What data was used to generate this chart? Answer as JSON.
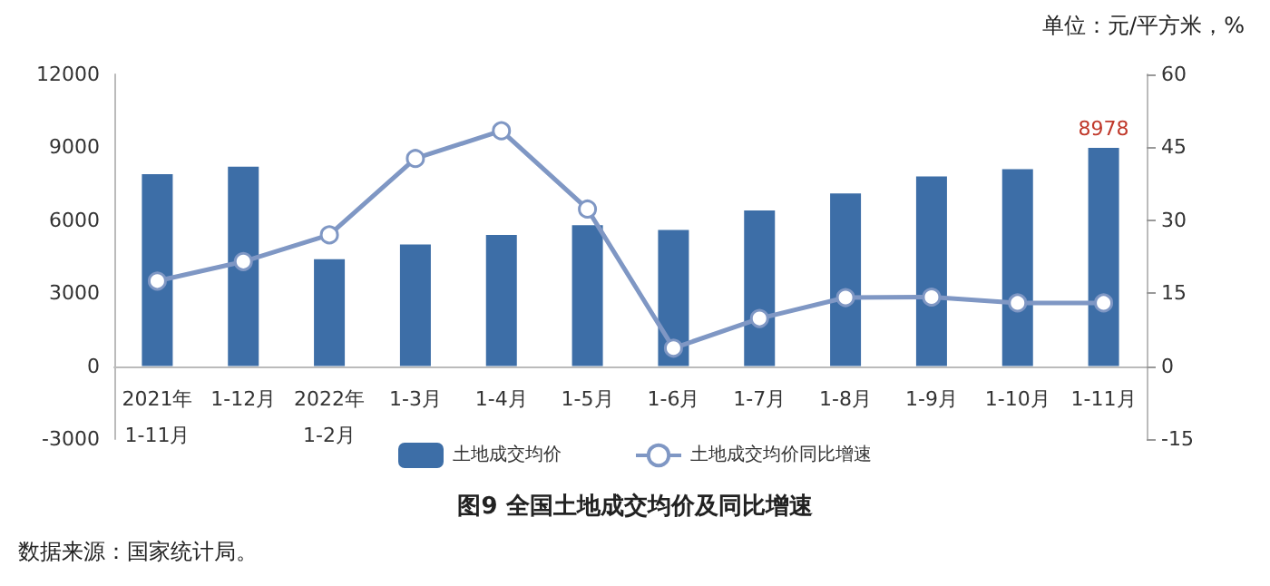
{
  "chart_data": {
    "type": "bar",
    "title": "图9 全国土地成交均价及同比增速",
    "annotations": [
      "单位：元/平方米，%",
      "数据来源：国家统计局。"
    ],
    "categories": [
      "2021年\n1-11月",
      "1-12月",
      "2022年\n1-2月",
      "1-3月",
      "1-4月",
      "1-5月",
      "1-6月",
      "1-7月",
      "1-8月",
      "1-9月",
      "1-10月",
      "1-11月"
    ],
    "series": [
      {
        "name": "土地成交均价",
        "color": "#3d6ea7",
        "values": [
          7900,
          8200,
          4400,
          5000,
          5400,
          5800,
          5600,
          6400,
          7100,
          7800,
          8100,
          8978
        ],
        "value_labels": [
          null,
          null,
          null,
          null,
          null,
          null,
          null,
          null,
          null,
          null,
          null,
          "8978"
        ]
      },
      {
        "name": "土地成交均价同比增速",
        "type": "line",
        "axis": "y2",
        "color": "#7f97c4",
        "marker": "circle",
        "values": [
          17.5,
          21.5,
          27.0,
          42.7,
          48.4,
          32.3,
          3.7,
          9.8,
          14.1,
          14.2,
          13.0,
          13.0
        ]
      }
    ],
    "ylim": [
      -3000,
      12000
    ],
    "yticks": [
      -3000,
      0,
      3000,
      6000,
      9000,
      12000
    ],
    "y2lim": [
      -15,
      60
    ],
    "y2ticks": [
      -15,
      0,
      15,
      30,
      45,
      60
    ],
    "grid": false,
    "legend": "bottom"
  }
}
